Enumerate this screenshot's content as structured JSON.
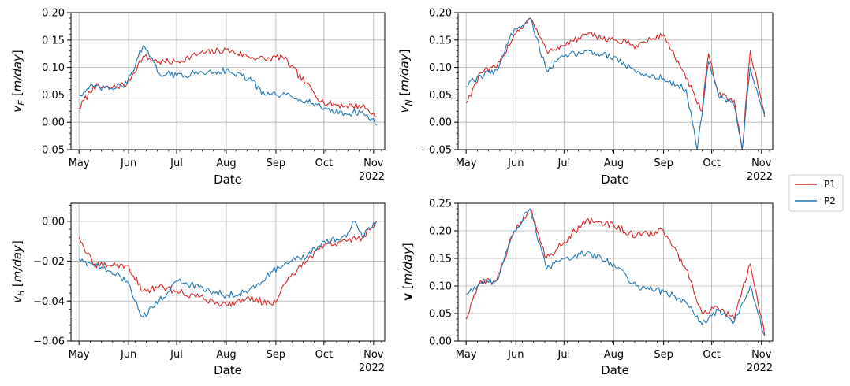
{
  "figure": {
    "year_label": "2022",
    "month_ticks": [
      "May",
      "Jun",
      "Jul",
      "Aug",
      "Sep",
      "Oct",
      "Nov"
    ]
  },
  "legend": {
    "placement": "right-center",
    "entries": [
      {
        "name": "P1",
        "color": "#d62728"
      },
      {
        "name": "P2",
        "color": "#1f77b4"
      }
    ]
  },
  "chart_data": [
    {
      "type": "line",
      "xlabel": "Date",
      "ylabel": "v_E [m/day]",
      "ylim": [
        -0.05,
        0.2
      ],
      "yticks": [
        "−0.05",
        "0.00",
        "0.05",
        "0.10",
        "0.15",
        "0.20"
      ],
      "xlim": [
        "2022-04-26",
        "2022-11-08"
      ],
      "grid": true,
      "series": [
        {
          "name": "P1",
          "color": "#d62728",
          "x": [
            "2022-05-01",
            "2022-05-10",
            "2022-05-20",
            "2022-05-31",
            "2022-06-10",
            "2022-06-20",
            "2022-07-01",
            "2022-07-15",
            "2022-08-01",
            "2022-08-15",
            "2022-08-25",
            "2022-09-05",
            "2022-09-20",
            "2022-10-01",
            "2022-10-15",
            "2022-10-25",
            "2022-11-03"
          ],
          "y": [
            0.025,
            0.065,
            0.062,
            0.07,
            0.12,
            0.11,
            0.11,
            0.125,
            0.132,
            0.12,
            0.115,
            0.12,
            0.07,
            0.035,
            0.03,
            0.03,
            0.01
          ]
        },
        {
          "name": "P2",
          "color": "#1f77b4",
          "x": [
            "2022-05-01",
            "2022-05-10",
            "2022-05-20",
            "2022-05-31",
            "2022-06-10",
            "2022-06-20",
            "2022-07-01",
            "2022-07-15",
            "2022-08-01",
            "2022-08-15",
            "2022-08-25",
            "2022-09-05",
            "2022-09-20",
            "2022-10-01",
            "2022-10-15",
            "2022-10-25",
            "2022-11-03"
          ],
          "y": [
            0.05,
            0.065,
            0.06,
            0.07,
            0.14,
            0.09,
            0.085,
            0.09,
            0.095,
            0.08,
            0.05,
            0.05,
            0.04,
            0.025,
            0.015,
            0.02,
            -0.005
          ]
        }
      ]
    },
    {
      "type": "line",
      "xlabel": "Date",
      "ylabel": "v_N [m/day]",
      "ylim": [
        -0.05,
        0.2
      ],
      "yticks": [
        "−0.05",
        "0.00",
        "0.05",
        "0.10",
        "0.15",
        "0.20"
      ],
      "xlim": [
        "2022-04-26",
        "2022-11-08"
      ],
      "grid": true,
      "series": [
        {
          "name": "P1",
          "color": "#d62728",
          "x": [
            "2022-05-01",
            "2022-05-10",
            "2022-05-20",
            "2022-05-31",
            "2022-06-10",
            "2022-06-20",
            "2022-07-01",
            "2022-07-15",
            "2022-08-01",
            "2022-08-15",
            "2022-09-01",
            "2022-09-15",
            "2022-09-25",
            "2022-09-29",
            "2022-10-05",
            "2022-10-15",
            "2022-10-20",
            "2022-10-25",
            "2022-11-03"
          ],
          "y": [
            0.035,
            0.09,
            0.1,
            0.16,
            0.19,
            0.13,
            0.14,
            0.16,
            0.15,
            0.14,
            0.16,
            0.08,
            0.02,
            0.125,
            0.05,
            0.04,
            -0.05,
            0.13,
            0.015
          ]
        },
        {
          "name": "P2",
          "color": "#1f77b4",
          "x": [
            "2022-05-01",
            "2022-05-10",
            "2022-05-20",
            "2022-05-31",
            "2022-06-10",
            "2022-06-20",
            "2022-07-01",
            "2022-07-15",
            "2022-08-01",
            "2022-08-15",
            "2022-09-01",
            "2022-09-15",
            "2022-09-22",
            "2022-09-29",
            "2022-10-05",
            "2022-10-15",
            "2022-10-20",
            "2022-10-25",
            "2022-11-03"
          ],
          "y": [
            0.065,
            0.085,
            0.095,
            0.17,
            0.19,
            0.095,
            0.12,
            0.13,
            0.12,
            0.09,
            0.08,
            0.06,
            -0.05,
            0.11,
            0.05,
            0.03,
            -0.05,
            0.1,
            0.01
          ]
        }
      ]
    },
    {
      "type": "line",
      "xlabel": "Date",
      "ylabel": "v_h [m/day]",
      "ylim": [
        -0.06,
        0.009
      ],
      "yticks": [
        "−0.06",
        "−0.04",
        "−0.02",
        "0.00"
      ],
      "xlim": [
        "2022-04-26",
        "2022-11-08"
      ],
      "grid": true,
      "series": [
        {
          "name": "P1",
          "color": "#d62728",
          "x": [
            "2022-05-01",
            "2022-05-10",
            "2022-05-20",
            "2022-05-31",
            "2022-06-10",
            "2022-06-20",
            "2022-07-01",
            "2022-07-15",
            "2022-08-01",
            "2022-08-15",
            "2022-08-30",
            "2022-09-10",
            "2022-09-20",
            "2022-10-01",
            "2022-10-15",
            "2022-10-25",
            "2022-11-03"
          ],
          "y": [
            -0.008,
            -0.022,
            -0.022,
            -0.022,
            -0.035,
            -0.033,
            -0.035,
            -0.038,
            -0.042,
            -0.038,
            -0.042,
            -0.028,
            -0.02,
            -0.012,
            -0.01,
            -0.008,
            0.0
          ]
        },
        {
          "name": "P2",
          "color": "#1f77b4",
          "x": [
            "2022-05-01",
            "2022-05-10",
            "2022-05-20",
            "2022-05-31",
            "2022-06-10",
            "2022-06-20",
            "2022-07-01",
            "2022-07-15",
            "2022-08-01",
            "2022-08-15",
            "2022-08-30",
            "2022-09-10",
            "2022-09-20",
            "2022-10-01",
            "2022-10-15",
            "2022-10-20",
            "2022-10-25",
            "2022-11-03"
          ],
          "y": [
            -0.019,
            -0.022,
            -0.025,
            -0.03,
            -0.048,
            -0.04,
            -0.03,
            -0.033,
            -0.037,
            -0.035,
            -0.025,
            -0.02,
            -0.018,
            -0.01,
            -0.008,
            0.0,
            -0.008,
            0.0
          ]
        }
      ]
    },
    {
      "type": "line",
      "xlabel": "Date",
      "ylabel": "v [m/day]",
      "ylim": [
        0.0,
        0.25
      ],
      "yticks": [
        "0.00",
        "0.05",
        "0.10",
        "0.15",
        "0.20",
        "0.25"
      ],
      "xlim": [
        "2022-04-26",
        "2022-11-08"
      ],
      "grid": true,
      "series": [
        {
          "name": "P1",
          "color": "#d62728",
          "x": [
            "2022-05-01",
            "2022-05-10",
            "2022-05-20",
            "2022-05-31",
            "2022-06-10",
            "2022-06-20",
            "2022-07-01",
            "2022-07-15",
            "2022-08-01",
            "2022-08-15",
            "2022-09-01",
            "2022-09-15",
            "2022-09-25",
            "2022-10-05",
            "2022-10-15",
            "2022-10-25",
            "2022-11-03"
          ],
          "y": [
            0.04,
            0.11,
            0.11,
            0.2,
            0.24,
            0.15,
            0.18,
            0.22,
            0.21,
            0.19,
            0.2,
            0.13,
            0.05,
            0.06,
            0.04,
            0.14,
            0.01
          ]
        },
        {
          "name": "P2",
          "color": "#1f77b4",
          "x": [
            "2022-05-01",
            "2022-05-10",
            "2022-05-20",
            "2022-05-31",
            "2022-06-10",
            "2022-06-20",
            "2022-07-01",
            "2022-07-15",
            "2022-08-01",
            "2022-08-15",
            "2022-09-01",
            "2022-09-15",
            "2022-09-25",
            "2022-10-05",
            "2022-10-15",
            "2022-10-25",
            "2022-11-03"
          ],
          "y": [
            0.085,
            0.105,
            0.11,
            0.2,
            0.24,
            0.13,
            0.15,
            0.16,
            0.14,
            0.1,
            0.09,
            0.07,
            0.03,
            0.055,
            0.035,
            0.1,
            0.01
          ]
        }
      ]
    }
  ]
}
